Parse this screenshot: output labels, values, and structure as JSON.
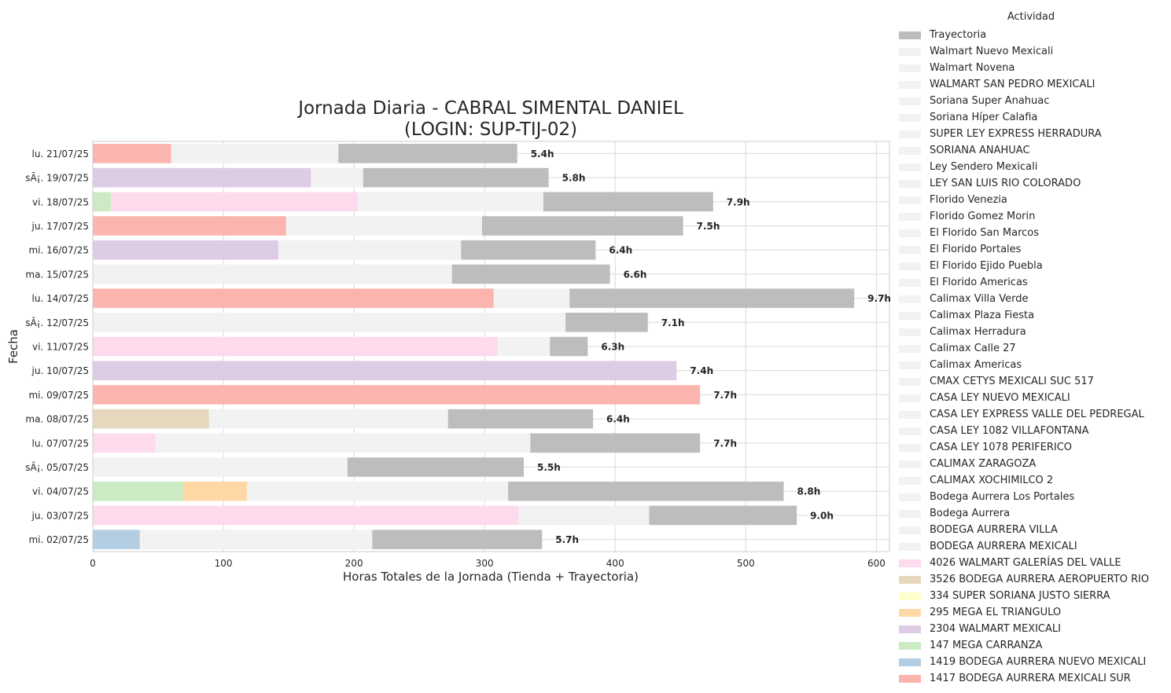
{
  "chart_data": {
    "type": "bar",
    "orientation": "horizontal",
    "stacked": true,
    "title": "Jornada Diaria - CABRAL SIMENTAL DANIEL\n(LOGIN: SUP-TIJ-02)",
    "xlabel": "Horas Totales de la Jornada (Tienda + Trayectoria)",
    "ylabel": "Fecha",
    "xlim": [
      0,
      610
    ],
    "xticks": [
      0,
      100,
      200,
      300,
      400,
      500,
      600
    ],
    "grid": true,
    "legend_title": "Actividad",
    "legend_position": "outside-right",
    "categories": [
      "lu. 21/07/25",
      "sÃ¡. 19/07/25",
      "vi. 18/07/25",
      "ju. 17/07/25",
      "mi. 16/07/25",
      "ma. 15/07/25",
      "lu. 14/07/25",
      "sÃ¡. 12/07/25",
      "vi. 11/07/25",
      "ju. 10/07/25",
      "mi. 09/07/25",
      "ma. 08/07/25",
      "lu. 07/07/25",
      "sÃ¡. 05/07/25",
      "vi. 04/07/25",
      "ju. 03/07/25",
      "mi. 02/07/25"
    ],
    "legend": [
      {
        "name": "Trayectoria",
        "color": "#bdbdbd"
      },
      {
        "name": "Walmart Nuevo Mexicali",
        "color": "#f2f2f2"
      },
      {
        "name": "Walmart Novena",
        "color": "#f2f2f2"
      },
      {
        "name": "WALMART SAN PEDRO MEXICALI",
        "color": "#f2f2f2"
      },
      {
        "name": "Soriana Super Anahuac",
        "color": "#f2f2f2"
      },
      {
        "name": "Soriana Híper Calafia",
        "color": "#f2f2f2"
      },
      {
        "name": "SUPER LEY EXPRESS HERRADURA",
        "color": "#f2f2f2"
      },
      {
        "name": "SORIANA ANAHUAC",
        "color": "#f2f2f2"
      },
      {
        "name": "Ley Sendero Mexicali",
        "color": "#f2f2f2"
      },
      {
        "name": "LEY SAN LUIS RIO COLORADO",
        "color": "#f2f2f2"
      },
      {
        "name": "Florido Venezia",
        "color": "#f2f2f2"
      },
      {
        "name": "Florido Gomez Morin",
        "color": "#f2f2f2"
      },
      {
        "name": "El Florido San Marcos",
        "color": "#f2f2f2"
      },
      {
        "name": "El Florido Portales",
        "color": "#f2f2f2"
      },
      {
        "name": "El Florido Ejido Puebla",
        "color": "#f2f2f2"
      },
      {
        "name": "El Florido Americas",
        "color": "#f2f2f2"
      },
      {
        "name": "Calimax Villa Verde",
        "color": "#f2f2f2"
      },
      {
        "name": "Calimax Plaza Fiesta",
        "color": "#f2f2f2"
      },
      {
        "name": "Calimax Herradura",
        "color": "#f2f2f2"
      },
      {
        "name": "Calimax Calle 27",
        "color": "#f2f2f2"
      },
      {
        "name": "Calimax Americas",
        "color": "#f2f2f2"
      },
      {
        "name": "CMAX CETYS MEXICALI SUC 517",
        "color": "#f2f2f2"
      },
      {
        "name": "CASA LEY NUEVO MEXICALI",
        "color": "#f2f2f2"
      },
      {
        "name": "CASA LEY EXPRESS VALLE DEL PEDREGAL",
        "color": "#f2f2f2"
      },
      {
        "name": "CASA LEY 1082 VILLAFONTANA",
        "color": "#f2f2f2"
      },
      {
        "name": "CASA LEY 1078 PERIFERICO",
        "color": "#f2f2f2"
      },
      {
        "name": "CALIMAX ZARAGOZA",
        "color": "#f2f2f2"
      },
      {
        "name": "CALIMAX XOCHIMILCO 2",
        "color": "#f2f2f2"
      },
      {
        "name": "Bodega Aurrera Los Portales",
        "color": "#f2f2f2"
      },
      {
        "name": "Bodega Aurrera",
        "color": "#f2f2f2"
      },
      {
        "name": "BODEGA AURRERA VILLA",
        "color": "#f2f2f2"
      },
      {
        "name": "BODEGA AURRERA MEXICALI",
        "color": "#f2f2f2"
      },
      {
        "name": "4026 WALMART GALERÍAS DEL VALLE",
        "color": "#fddaec"
      },
      {
        "name": "3526 BODEGA AURRERA AEROPUERTO RIO",
        "color": "#e5d8bd"
      },
      {
        "name": "334 SUPER SORIANA JUSTO SIERRA",
        "color": "#ffffcc"
      },
      {
        "name": "295 MEGA EL TRIANGULO",
        "color": "#fed9a6"
      },
      {
        "name": "2304 WALMART MEXICALI",
        "color": "#decbe4"
      },
      {
        "name": "147 MEGA CARRANZA",
        "color": "#ccebc5"
      },
      {
        "name": "1419 BODEGA AURRERA NUEVO MEXICALI",
        "color": "#b3cde3"
      },
      {
        "name": "1417 BODEGA AURRERA MEXICALI SUR",
        "color": "#fbb4ae"
      }
    ],
    "bars": [
      {
        "date": "lu. 21/07/25",
        "total_label": "5.4h",
        "segments": [
          {
            "activity": "1417 BODEGA AURRERA MEXICALI SUR",
            "value": 60,
            "color": "#fbb4ae"
          },
          {
            "activity": "other store",
            "value": 128,
            "color": "#f2f2f2"
          },
          {
            "activity": "Trayectoria",
            "value": 137,
            "color": "#bdbdbd"
          }
        ]
      },
      {
        "date": "sÃ¡. 19/07/25",
        "total_label": "5.8h",
        "segments": [
          {
            "activity": "2304 WALMART MEXICALI",
            "value": 167,
            "color": "#decbe4"
          },
          {
            "activity": "other store",
            "value": 40,
            "color": "#f2f2f2"
          },
          {
            "activity": "Trayectoria",
            "value": 142,
            "color": "#bdbdbd"
          }
        ]
      },
      {
        "date": "vi. 18/07/25",
        "total_label": "7.9h",
        "segments": [
          {
            "activity": "147 MEGA CARRANZA",
            "value": 14,
            "color": "#ccebc5"
          },
          {
            "activity": "4026 WALMART GALERÍAS DEL VALLE",
            "value": 189,
            "color": "#fddaec"
          },
          {
            "activity": "other store",
            "value": 142,
            "color": "#f2f2f2"
          },
          {
            "activity": "Trayectoria",
            "value": 130,
            "color": "#bdbdbd"
          }
        ]
      },
      {
        "date": "ju. 17/07/25",
        "total_label": "7.5h",
        "segments": [
          {
            "activity": "1417 BODEGA AURRERA MEXICALI SUR",
            "value": 148,
            "color": "#fbb4ae"
          },
          {
            "activity": "other store",
            "value": 150,
            "color": "#f2f2f2"
          },
          {
            "activity": "Trayectoria",
            "value": 154,
            "color": "#bdbdbd"
          }
        ]
      },
      {
        "date": "mi. 16/07/25",
        "total_label": "6.4h",
        "segments": [
          {
            "activity": "2304 WALMART MEXICALI",
            "value": 142,
            "color": "#decbe4"
          },
          {
            "activity": "other store",
            "value": 140,
            "color": "#f2f2f2"
          },
          {
            "activity": "Trayectoria",
            "value": 103,
            "color": "#bdbdbd"
          }
        ]
      },
      {
        "date": "ma. 15/07/25",
        "total_label": "6.6h",
        "segments": [
          {
            "activity": "other store",
            "value": 275,
            "color": "#f2f2f2"
          },
          {
            "activity": "Trayectoria",
            "value": 121,
            "color": "#bdbdbd"
          }
        ]
      },
      {
        "date": "lu. 14/07/25",
        "total_label": "9.7h",
        "segments": [
          {
            "activity": "1417 BODEGA AURRERA MEXICALI SUR",
            "value": 307,
            "color": "#fbb4ae"
          },
          {
            "activity": "other store",
            "value": 58,
            "color": "#f2f2f2"
          },
          {
            "activity": "Trayectoria",
            "value": 218,
            "color": "#bdbdbd"
          }
        ]
      },
      {
        "date": "sÃ¡. 12/07/25",
        "total_label": "7.1h",
        "segments": [
          {
            "activity": "other store",
            "value": 362,
            "color": "#f2f2f2"
          },
          {
            "activity": "Trayectoria",
            "value": 63,
            "color": "#bdbdbd"
          }
        ]
      },
      {
        "date": "vi. 11/07/25",
        "total_label": "6.3h",
        "segments": [
          {
            "activity": "4026 WALMART GALERÍAS DEL VALLE",
            "value": 310,
            "color": "#fddaec"
          },
          {
            "activity": "other store",
            "value": 40,
            "color": "#f2f2f2"
          },
          {
            "activity": "Trayectoria",
            "value": 29,
            "color": "#bdbdbd"
          }
        ]
      },
      {
        "date": "ju. 10/07/25",
        "total_label": "7.4h",
        "segments": [
          {
            "activity": "2304 WALMART MEXICALI",
            "value": 447,
            "color": "#decbe4"
          }
        ]
      },
      {
        "date": "mi. 09/07/25",
        "total_label": "7.7h",
        "segments": [
          {
            "activity": "1417 BODEGA AURRERA MEXICALI SUR",
            "value": 465,
            "color": "#fbb4ae"
          }
        ]
      },
      {
        "date": "ma. 08/07/25",
        "total_label": "6.4h",
        "segments": [
          {
            "activity": "3526 BODEGA AURRERA AEROPUERTO RIO",
            "value": 89,
            "color": "#e5d8bd"
          },
          {
            "activity": "other store",
            "value": 183,
            "color": "#f2f2f2"
          },
          {
            "activity": "Trayectoria",
            "value": 111,
            "color": "#bdbdbd"
          }
        ]
      },
      {
        "date": "lu. 07/07/25",
        "total_label": "7.7h",
        "segments": [
          {
            "activity": "4026 WALMART GALERÍAS DEL VALLE",
            "value": 48,
            "color": "#fddaec"
          },
          {
            "activity": "other store",
            "value": 287,
            "color": "#f2f2f2"
          },
          {
            "activity": "Trayectoria",
            "value": 130,
            "color": "#bdbdbd"
          }
        ]
      },
      {
        "date": "sÃ¡. 05/07/25",
        "total_label": "5.5h",
        "segments": [
          {
            "activity": "other store",
            "value": 195,
            "color": "#f2f2f2"
          },
          {
            "activity": "Trayectoria",
            "value": 135,
            "color": "#bdbdbd"
          }
        ]
      },
      {
        "date": "vi. 04/07/25",
        "total_label": "8.8h",
        "segments": [
          {
            "activity": "147 MEGA CARRANZA",
            "value": 69,
            "color": "#ccebc5"
          },
          {
            "activity": "295 MEGA EL TRIANGULO",
            "value": 49,
            "color": "#fed9a6"
          },
          {
            "activity": "other store",
            "value": 200,
            "color": "#f2f2f2"
          },
          {
            "activity": "Trayectoria",
            "value": 211,
            "color": "#bdbdbd"
          }
        ]
      },
      {
        "date": "ju. 03/07/25",
        "total_label": "9.0h",
        "segments": [
          {
            "activity": "4026 WALMART GALERÍAS DEL VALLE",
            "value": 326,
            "color": "#fddaec"
          },
          {
            "activity": "other store",
            "value": 100,
            "color": "#f2f2f2"
          },
          {
            "activity": "Trayectoria",
            "value": 113,
            "color": "#bdbdbd"
          }
        ]
      },
      {
        "date": "mi. 02/07/25",
        "total_label": "5.7h",
        "segments": [
          {
            "activity": "1419 BODEGA AURRERA NUEVO MEXICALI",
            "value": 36,
            "color": "#b3cde3"
          },
          {
            "activity": "other store",
            "value": 178,
            "color": "#f2f2f2"
          },
          {
            "activity": "Trayectoria",
            "value": 130,
            "color": "#bdbdbd"
          }
        ]
      }
    ]
  }
}
